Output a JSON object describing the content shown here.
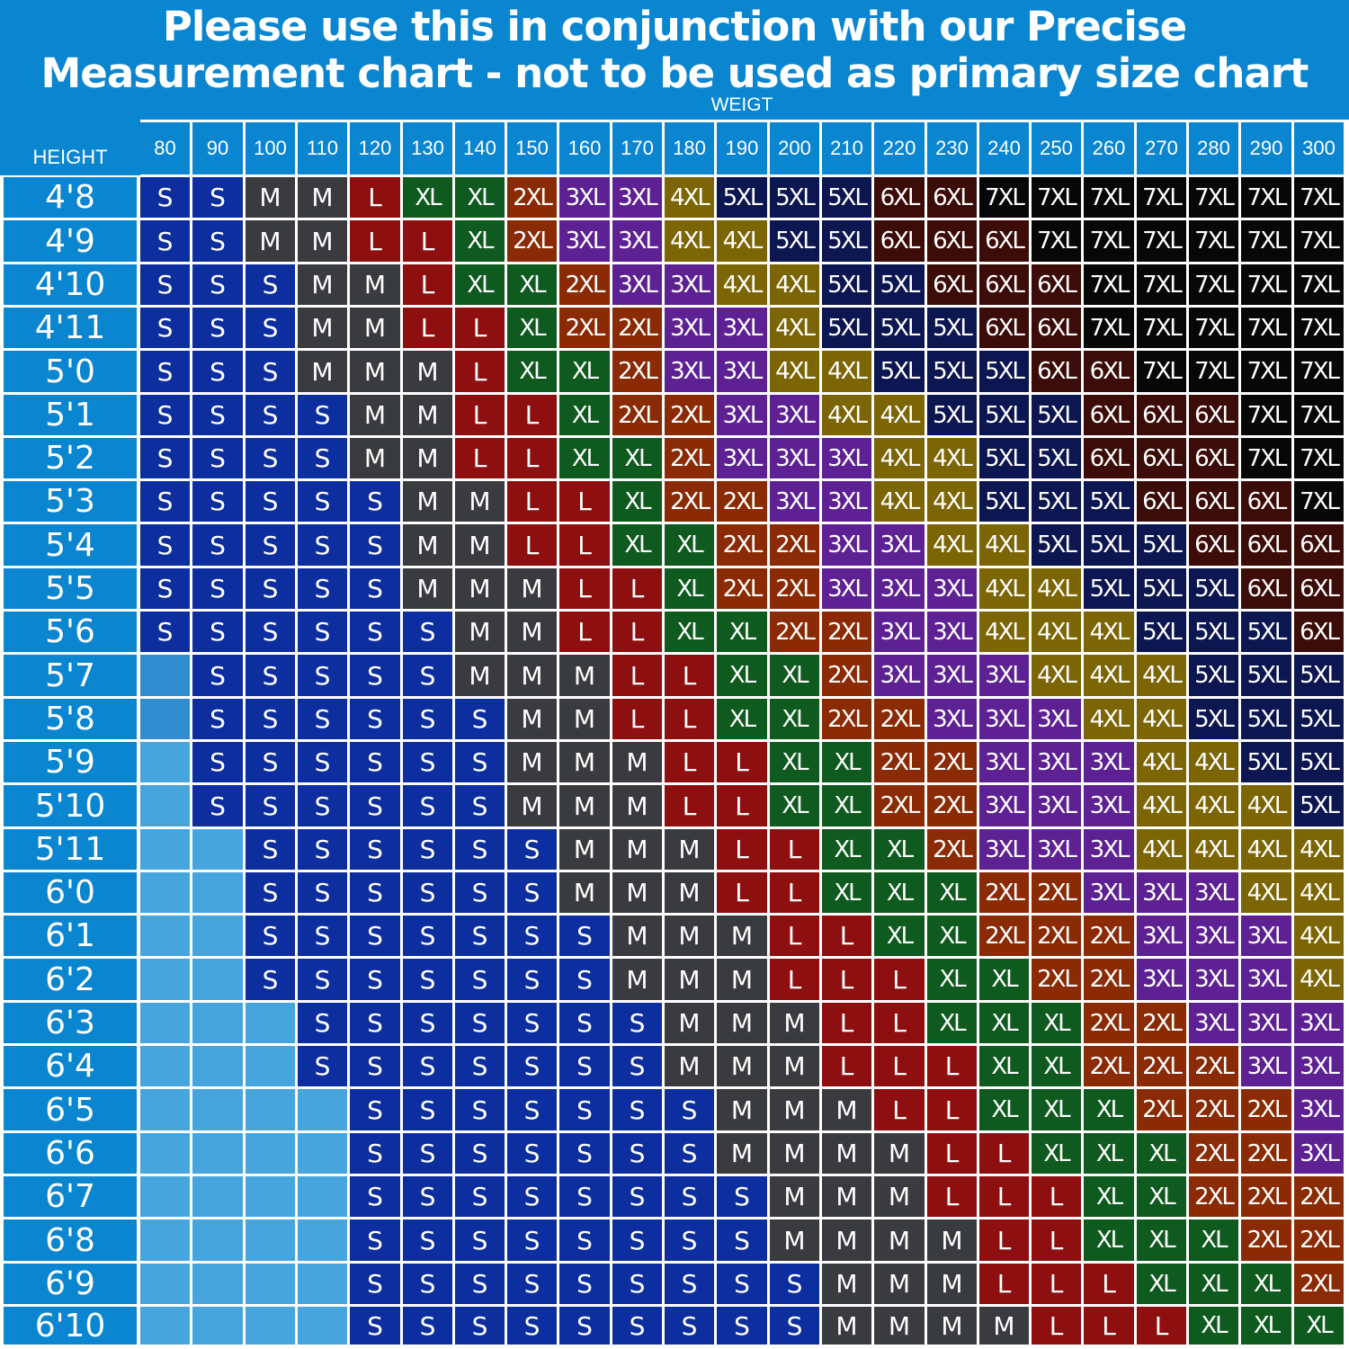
{
  "chart_data": {
    "type": "table",
    "title_lines": [
      "Please use this in conjunction with our Precise",
      "Measurement chart - not to be used as primary size chart"
    ],
    "column_axis_label": "WEIGT",
    "row_axis_label": "HEIGHT",
    "weights": [
      "80",
      "90",
      "100",
      "110",
      "120",
      "130",
      "140",
      "150",
      "160",
      "170",
      "180",
      "190",
      "200",
      "210",
      "220",
      "230",
      "240",
      "250",
      "260",
      "270",
      "280",
      "290",
      "300"
    ],
    "heights": [
      "4'8",
      "4'9",
      "4'10",
      "4'11",
      "5'0",
      "5'1",
      "5'2",
      "5'3",
      "5'4",
      "5'5",
      "5'6",
      "5'7",
      "5'8",
      "5'9",
      "5'10",
      "5'11",
      "6'0",
      "6'1",
      "6'2",
      "6'3",
      "6'4",
      "6'5",
      "6'6",
      "6'7",
      "6'8",
      "6'9",
      "6'10"
    ],
    "sizes": [
      [
        "S",
        "S",
        "M",
        "M",
        "L",
        "XL",
        "XL",
        "2XL",
        "3XL",
        "3XL",
        "4XL",
        "5XL",
        "5XL",
        "5XL",
        "6XL",
        "6XL",
        "7XL",
        "7XL",
        "7XL",
        "7XL",
        "7XL",
        "7XL",
        "7XL"
      ],
      [
        "S",
        "S",
        "M",
        "M",
        "L",
        "L",
        "XL",
        "2XL",
        "3XL",
        "3XL",
        "4XL",
        "4XL",
        "5XL",
        "5XL",
        "6XL",
        "6XL",
        "6XL",
        "7XL",
        "7XL",
        "7XL",
        "7XL",
        "7XL",
        "7XL"
      ],
      [
        "S",
        "S",
        "S",
        "M",
        "M",
        "L",
        "XL",
        "XL",
        "2XL",
        "3XL",
        "3XL",
        "4XL",
        "4XL",
        "5XL",
        "5XL",
        "6XL",
        "6XL",
        "6XL",
        "7XL",
        "7XL",
        "7XL",
        "7XL",
        "7XL"
      ],
      [
        "S",
        "S",
        "S",
        "M",
        "M",
        "L",
        "L",
        "XL",
        "2XL",
        "2XL",
        "3XL",
        "3XL",
        "4XL",
        "5XL",
        "5XL",
        "5XL",
        "6XL",
        "6XL",
        "7XL",
        "7XL",
        "7XL",
        "7XL",
        "7XL"
      ],
      [
        "S",
        "S",
        "S",
        "M",
        "M",
        "M",
        "L",
        "XL",
        "XL",
        "2XL",
        "3XL",
        "3XL",
        "4XL",
        "4XL",
        "5XL",
        "5XL",
        "5XL",
        "6XL",
        "6XL",
        "7XL",
        "7XL",
        "7XL",
        "7XL"
      ],
      [
        "S",
        "S",
        "S",
        "S",
        "M",
        "M",
        "L",
        "L",
        "XL",
        "2XL",
        "2XL",
        "3XL",
        "3XL",
        "4XL",
        "4XL",
        "5XL",
        "5XL",
        "5XL",
        "6XL",
        "6XL",
        "6XL",
        "7XL",
        "7XL"
      ],
      [
        "S",
        "S",
        "S",
        "S",
        "M",
        "M",
        "L",
        "L",
        "XL",
        "XL",
        "2XL",
        "3XL",
        "3XL",
        "3XL",
        "4XL",
        "4XL",
        "5XL",
        "5XL",
        "6XL",
        "6XL",
        "6XL",
        "7XL",
        "7XL"
      ],
      [
        "S",
        "S",
        "S",
        "S",
        "S",
        "M",
        "M",
        "L",
        "L",
        "XL",
        "2XL",
        "2XL",
        "3XL",
        "3XL",
        "4XL",
        "4XL",
        "5XL",
        "5XL",
        "5XL",
        "6XL",
        "6XL",
        "6XL",
        "7XL"
      ],
      [
        "S",
        "S",
        "S",
        "S",
        "S",
        "M",
        "M",
        "L",
        "L",
        "XL",
        "XL",
        "2XL",
        "2XL",
        "3XL",
        "3XL",
        "4XL",
        "4XL",
        "5XL",
        "5XL",
        "5XL",
        "6XL",
        "6XL",
        "6XL"
      ],
      [
        "S",
        "S",
        "S",
        "S",
        "S",
        "M",
        "M",
        "M",
        "L",
        "L",
        "XL",
        "2XL",
        "2XL",
        "3XL",
        "3XL",
        "3XL",
        "4XL",
        "4XL",
        "5XL",
        "5XL",
        "5XL",
        "6XL",
        "6XL"
      ],
      [
        "S",
        "S",
        "S",
        "S",
        "S",
        "S",
        "M",
        "M",
        "L",
        "L",
        "XL",
        "XL",
        "2XL",
        "2XL",
        "3XL",
        "3XL",
        "4XL",
        "4XL",
        "4XL",
        "5XL",
        "5XL",
        "5XL",
        "6XL"
      ],
      [
        "",
        "S",
        "S",
        "S",
        "S",
        "S",
        "M",
        "M",
        "M",
        "L",
        "L",
        "XL",
        "XL",
        "2XL",
        "3XL",
        "3XL",
        "3XL",
        "4XL",
        "4XL",
        "4XL",
        "5XL",
        "5XL",
        "5XL"
      ],
      [
        "",
        "S",
        "S",
        "S",
        "S",
        "S",
        "S",
        "M",
        "M",
        "L",
        "L",
        "XL",
        "XL",
        "2XL",
        "2XL",
        "3XL",
        "3XL",
        "3XL",
        "4XL",
        "4XL",
        "5XL",
        "5XL",
        "5XL"
      ],
      [
        "",
        "S",
        "S",
        "S",
        "S",
        "S",
        "S",
        "M",
        "M",
        "M",
        "L",
        "L",
        "XL",
        "XL",
        "2XL",
        "2XL",
        "3XL",
        "3XL",
        "3XL",
        "4XL",
        "4XL",
        "5XL",
        "5XL"
      ],
      [
        "",
        "S",
        "S",
        "S",
        "S",
        "S",
        "S",
        "M",
        "M",
        "M",
        "L",
        "L",
        "XL",
        "XL",
        "2XL",
        "2XL",
        "3XL",
        "3XL",
        "3XL",
        "4XL",
        "4XL",
        "4XL",
        "5XL"
      ],
      [
        "",
        "",
        "S",
        "S",
        "S",
        "S",
        "S",
        "S",
        "M",
        "M",
        "M",
        "L",
        "L",
        "XL",
        "XL",
        "2XL",
        "3XL",
        "3XL",
        "3XL",
        "4XL",
        "4XL",
        "4XL",
        "4XL"
      ],
      [
        "",
        "",
        "S",
        "S",
        "S",
        "S",
        "S",
        "S",
        "M",
        "M",
        "M",
        "L",
        "L",
        "XL",
        "XL",
        "XL",
        "2XL",
        "2XL",
        "3XL",
        "3XL",
        "3XL",
        "4XL",
        "4XL"
      ],
      [
        "",
        "",
        "S",
        "S",
        "S",
        "S",
        "S",
        "S",
        "S",
        "M",
        "M",
        "M",
        "L",
        "L",
        "XL",
        "XL",
        "2XL",
        "2XL",
        "2XL",
        "3XL",
        "3XL",
        "3XL",
        "4XL"
      ],
      [
        "",
        "",
        "S",
        "S",
        "S",
        "S",
        "S",
        "S",
        "S",
        "M",
        "M",
        "M",
        "L",
        "L",
        "L",
        "XL",
        "XL",
        "2XL",
        "2XL",
        "3XL",
        "3XL",
        "3XL",
        "4XL"
      ],
      [
        "",
        "",
        "",
        "S",
        "S",
        "S",
        "S",
        "S",
        "S",
        "S",
        "M",
        "M",
        "M",
        "L",
        "L",
        "XL",
        "XL",
        "XL",
        "2XL",
        "2XL",
        "3XL",
        "3XL",
        "3XL"
      ],
      [
        "",
        "",
        "",
        "S",
        "S",
        "S",
        "S",
        "S",
        "S",
        "S",
        "M",
        "M",
        "M",
        "L",
        "L",
        "L",
        "XL",
        "XL",
        "2XL",
        "2XL",
        "2XL",
        "3XL",
        "3XL"
      ],
      [
        "",
        "",
        "",
        "",
        "S",
        "S",
        "S",
        "S",
        "S",
        "S",
        "S",
        "M",
        "M",
        "M",
        "L",
        "L",
        "XL",
        "XL",
        "XL",
        "2XL",
        "2XL",
        "2XL",
        "3XL"
      ],
      [
        "",
        "",
        "",
        "",
        "S",
        "S",
        "S",
        "S",
        "S",
        "S",
        "S",
        "M",
        "M",
        "M",
        "M",
        "L",
        "L",
        "XL",
        "XL",
        "XL",
        "2XL",
        "2XL",
        "3XL"
      ],
      [
        "",
        "",
        "",
        "",
        "S",
        "S",
        "S",
        "S",
        "S",
        "S",
        "S",
        "S",
        "M",
        "M",
        "M",
        "L",
        "L",
        "L",
        "XL",
        "XL",
        "2XL",
        "2XL",
        "2XL"
      ],
      [
        "",
        "",
        "",
        "",
        "S",
        "S",
        "S",
        "S",
        "S",
        "S",
        "S",
        "S",
        "M",
        "M",
        "M",
        "M",
        "L",
        "L",
        "XL",
        "XL",
        "XL",
        "2XL",
        "2XL"
      ],
      [
        "",
        "",
        "",
        "",
        "S",
        "S",
        "S",
        "S",
        "S",
        "S",
        "S",
        "S",
        "S",
        "M",
        "M",
        "M",
        "L",
        "L",
        "L",
        "XL",
        "XL",
        "XL",
        "2XL"
      ],
      [
        "",
        "",
        "",
        "",
        "S",
        "S",
        "S",
        "S",
        "S",
        "S",
        "S",
        "S",
        "S",
        "M",
        "M",
        "M",
        "M",
        "L",
        "L",
        "L",
        "XL",
        "XL",
        "XL"
      ]
    ],
    "size_colors": {
      "S": "#0d2e9e",
      "M": "#3a3b3e",
      "L": "#8e0f0f",
      "XL": "#0f5a1e",
      "2XL": "#8a2b05",
      "3XL": "#5e2193",
      "4XL": "#7c6505",
      "5XL": "#0c1650",
      "6XL": "#3b0c08",
      "7XL": "#070707"
    },
    "empty_cell_colors": [
      "#2f8ccf",
      "#46a5dc"
    ],
    "header_color": "#0a85cf",
    "height_label_color": "#0a85cf"
  }
}
